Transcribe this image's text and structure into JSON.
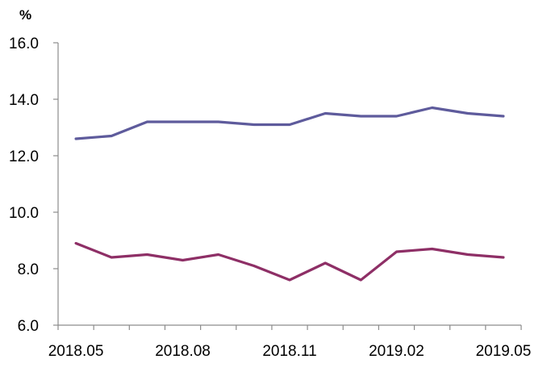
{
  "chart_data": {
    "type": "line",
    "title": "",
    "ylabel": "%",
    "xlabel": "",
    "ylim": [
      6.0,
      16.0
    ],
    "yticks": [
      "6.0",
      "8.0",
      "10.0",
      "12.0",
      "14.0",
      "16.0"
    ],
    "x": [
      "2018.05",
      "2018.06",
      "2018.07",
      "2018.08",
      "2018.09",
      "2018.10",
      "2018.11",
      "2018.12",
      "2019.01",
      "2019.02",
      "2019.03",
      "2019.04",
      "2019.05"
    ],
    "x_tick_labels": [
      {
        "label": "2018.05",
        "index": 0
      },
      {
        "label": "2018.08",
        "index": 3
      },
      {
        "label": "2018.11",
        "index": 6
      },
      {
        "label": "2019.02",
        "index": 9
      },
      {
        "label": "2019.05",
        "index": 12
      }
    ],
    "series": [
      {
        "color": "#5e5b9c",
        "values": [
          12.6,
          12.7,
          13.2,
          13.2,
          13.2,
          13.1,
          13.1,
          13.5,
          13.4,
          13.4,
          13.7,
          13.5,
          13.4
        ]
      },
      {
        "color": "#8e2f66",
        "values": [
          8.9,
          8.4,
          8.5,
          8.3,
          8.5,
          8.1,
          7.6,
          8.2,
          7.6,
          8.6,
          8.7,
          8.5,
          8.4
        ]
      }
    ],
    "grid": false,
    "legend": "none"
  }
}
